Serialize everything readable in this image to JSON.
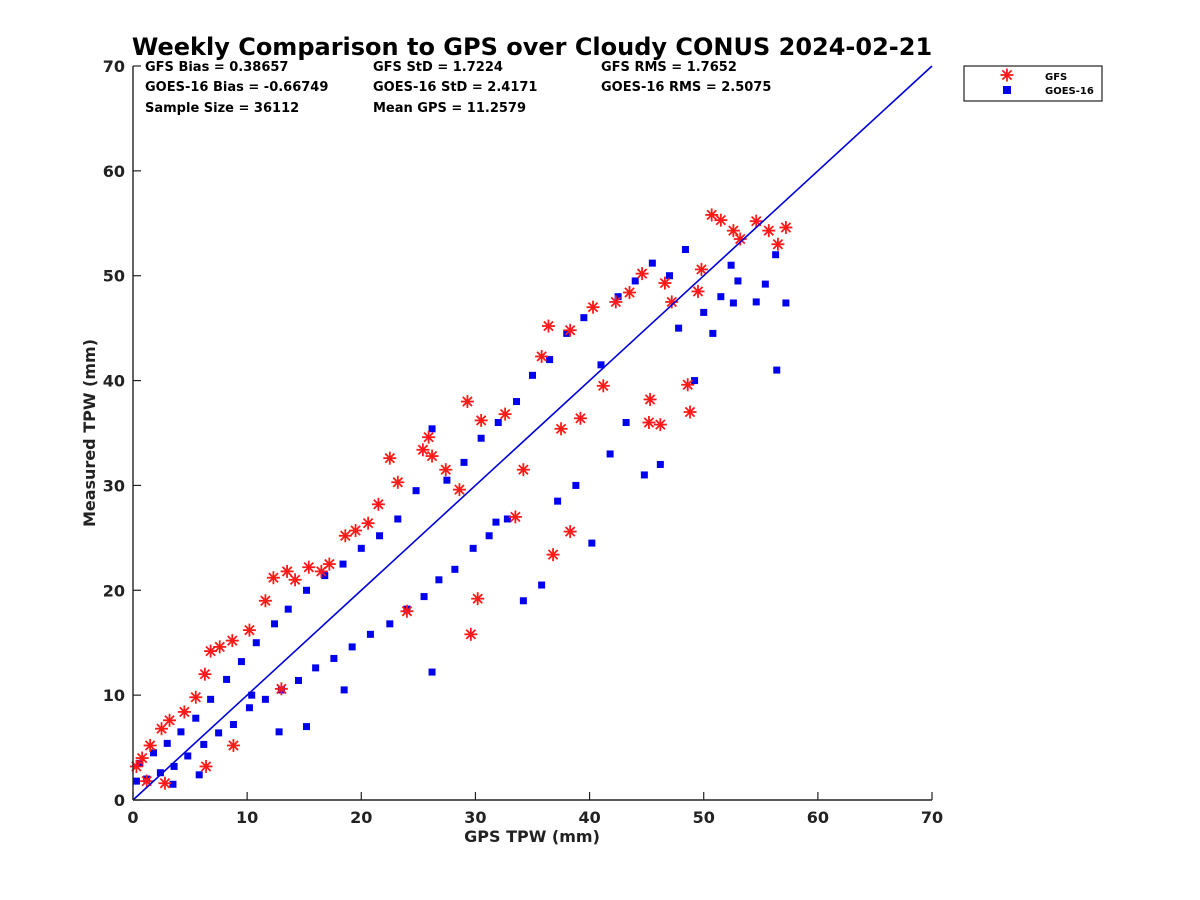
{
  "chart_data": {
    "type": "scatter",
    "title": "Weekly Comparison to GPS over Cloudy CONUS 2024-02-21",
    "xlabel": "GPS TPW (mm)",
    "ylabel": "Measured TPW (mm)",
    "xlim": [
      0,
      70
    ],
    "ylim": [
      0,
      70
    ],
    "xticks": [
      "0",
      "10",
      "20",
      "30",
      "40",
      "50",
      "60",
      "70"
    ],
    "yticks": [
      "0",
      "10",
      "20",
      "30",
      "40",
      "50",
      "60",
      "70"
    ],
    "grid": false,
    "legend_position": "outside-top-right",
    "stats": [
      [
        "GFS Bias = 0.38657",
        "GFS StD = 1.7224",
        "GFS RMS = 1.7652"
      ],
      [
        "GOES-16 Bias = -0.66749",
        "GOES-16 StD = 2.4171",
        "GOES-16 RMS = 2.5075"
      ],
      [
        "Sample Size = 36112",
        "Mean GPS = 11.2579"
      ]
    ],
    "reference_line": {
      "x": [
        0,
        70
      ],
      "y": [
        0,
        70
      ],
      "color": "#0000dd"
    },
    "series": [
      {
        "name": "GFS",
        "marker": "asterisk",
        "color": "#ff1a1a",
        "points": [
          [
            0.3,
            3.2
          ],
          [
            0.8,
            4.0
          ],
          [
            1.5,
            5.2
          ],
          [
            2.5,
            6.8
          ],
          [
            3.2,
            7.6
          ],
          [
            4.5,
            8.4
          ],
          [
            5.5,
            9.8
          ],
          [
            6.3,
            12.0
          ],
          [
            6.8,
            14.2
          ],
          [
            7.6,
            14.6
          ],
          [
            8.7,
            15.2
          ],
          [
            10.2,
            16.2
          ],
          [
            11.6,
            19.0
          ],
          [
            12.3,
            21.2
          ],
          [
            13.5,
            21.8
          ],
          [
            14.2,
            21.0
          ],
          [
            15.4,
            22.2
          ],
          [
            16.5,
            21.8
          ],
          [
            17.2,
            22.5
          ],
          [
            18.6,
            25.2
          ],
          [
            19.5,
            25.7
          ],
          [
            20.6,
            26.4
          ],
          [
            21.5,
            28.2
          ],
          [
            22.5,
            32.6
          ],
          [
            23.2,
            30.3
          ],
          [
            25.4,
            33.4
          ],
          [
            25.9,
            34.6
          ],
          [
            26.2,
            32.8
          ],
          [
            27.4,
            31.5
          ],
          [
            28.6,
            29.6
          ],
          [
            29.3,
            38.0
          ],
          [
            30.5,
            36.2
          ],
          [
            32.6,
            36.8
          ],
          [
            34.2,
            31.5
          ],
          [
            35.8,
            42.3
          ],
          [
            36.4,
            45.2
          ],
          [
            37.5,
            35.4
          ],
          [
            38.3,
            44.8
          ],
          [
            39.2,
            36.4
          ],
          [
            40.3,
            47.0
          ],
          [
            41.2,
            39.5
          ],
          [
            42.3,
            47.5
          ],
          [
            43.5,
            48.4
          ],
          [
            44.6,
            50.2
          ],
          [
            45.3,
            38.2
          ],
          [
            46.2,
            35.8
          ],
          [
            46.6,
            49.3
          ],
          [
            47.2,
            47.5
          ],
          [
            48.6,
            39.6
          ],
          [
            49.5,
            48.5
          ],
          [
            49.8,
            50.6
          ],
          [
            50.7,
            55.8
          ],
          [
            51.5,
            55.3
          ],
          [
            52.6,
            54.3
          ],
          [
            53.2,
            53.5
          ],
          [
            54.6,
            55.2
          ],
          [
            55.7,
            54.3
          ],
          [
            56.5,
            53.0
          ],
          [
            57.2,
            54.6
          ],
          [
            36.8,
            23.4
          ],
          [
            38.3,
            25.6
          ],
          [
            29.6,
            15.8
          ],
          [
            30.2,
            19.2
          ],
          [
            1.2,
            1.8
          ],
          [
            2.8,
            1.6
          ],
          [
            6.4,
            3.2
          ],
          [
            8.8,
            5.2
          ],
          [
            13.0,
            10.6
          ],
          [
            24.0,
            18.0
          ],
          [
            33.5,
            27.0
          ],
          [
            45.2,
            36.0
          ],
          [
            48.8,
            37.0
          ]
        ]
      },
      {
        "name": "GOES-16",
        "marker": "square",
        "color": "#0000ee",
        "points": [
          [
            0.3,
            1.8
          ],
          [
            0.6,
            3.5
          ],
          [
            1.2,
            2.0
          ],
          [
            1.8,
            4.5
          ],
          [
            2.4,
            2.6
          ],
          [
            3.0,
            5.4
          ],
          [
            3.6,
            3.2
          ],
          [
            4.2,
            6.5
          ],
          [
            4.8,
            4.2
          ],
          [
            5.5,
            7.8
          ],
          [
            6.2,
            5.3
          ],
          [
            6.8,
            9.6
          ],
          [
            7.5,
            6.4
          ],
          [
            8.2,
            11.5
          ],
          [
            8.8,
            7.2
          ],
          [
            9.5,
            13.2
          ],
          [
            10.2,
            8.8
          ],
          [
            10.8,
            15.0
          ],
          [
            11.6,
            9.6
          ],
          [
            12.4,
            16.8
          ],
          [
            13.0,
            10.5
          ],
          [
            13.6,
            18.2
          ],
          [
            14.5,
            11.4
          ],
          [
            15.2,
            20.0
          ],
          [
            16.0,
            12.6
          ],
          [
            16.8,
            21.4
          ],
          [
            17.6,
            13.5
          ],
          [
            18.4,
            22.5
          ],
          [
            19.2,
            14.6
          ],
          [
            20.0,
            24.0
          ],
          [
            20.8,
            15.8
          ],
          [
            21.6,
            25.2
          ],
          [
            22.5,
            16.8
          ],
          [
            23.2,
            26.8
          ],
          [
            24.0,
            18.2
          ],
          [
            24.8,
            29.5
          ],
          [
            25.5,
            19.4
          ],
          [
            26.2,
            35.4
          ],
          [
            26.8,
            21.0
          ],
          [
            27.5,
            30.5
          ],
          [
            28.2,
            22.0
          ],
          [
            29.0,
            32.2
          ],
          [
            29.8,
            24.0
          ],
          [
            30.5,
            34.5
          ],
          [
            31.2,
            25.2
          ],
          [
            32.0,
            36.0
          ],
          [
            32.8,
            26.8
          ],
          [
            33.6,
            38.0
          ],
          [
            34.2,
            19.0
          ],
          [
            35.0,
            40.5
          ],
          [
            35.8,
            20.5
          ],
          [
            36.5,
            42.0
          ],
          [
            37.2,
            28.5
          ],
          [
            38.0,
            44.5
          ],
          [
            38.8,
            30.0
          ],
          [
            39.5,
            46.0
          ],
          [
            40.2,
            24.5
          ],
          [
            41.0,
            41.5
          ],
          [
            41.8,
            33.0
          ],
          [
            42.5,
            48.0
          ],
          [
            43.2,
            36.0
          ],
          [
            44.0,
            49.5
          ],
          [
            44.8,
            31.0
          ],
          [
            45.5,
            51.2
          ],
          [
            46.2,
            32.0
          ],
          [
            47.0,
            50.0
          ],
          [
            47.8,
            45.0
          ],
          [
            48.4,
            52.5
          ],
          [
            49.2,
            40.0
          ],
          [
            50.0,
            46.5
          ],
          [
            50.8,
            44.5
          ],
          [
            51.5,
            48.0
          ],
          [
            52.4,
            51.0
          ],
          [
            53.0,
            49.5
          ],
          [
            54.6,
            47.5
          ],
          [
            55.4,
            49.2
          ],
          [
            56.4,
            41.0
          ],
          [
            56.3,
            52.0
          ],
          [
            57.2,
            47.4
          ],
          [
            52.6,
            47.4
          ],
          [
            12.8,
            6.5
          ],
          [
            15.2,
            7.0
          ],
          [
            10.4,
            10.0
          ],
          [
            18.5,
            10.5
          ],
          [
            26.2,
            12.2
          ],
          [
            3.5,
            1.5
          ],
          [
            5.8,
            2.4
          ],
          [
            31.8,
            26.5
          ]
        ]
      }
    ]
  }
}
